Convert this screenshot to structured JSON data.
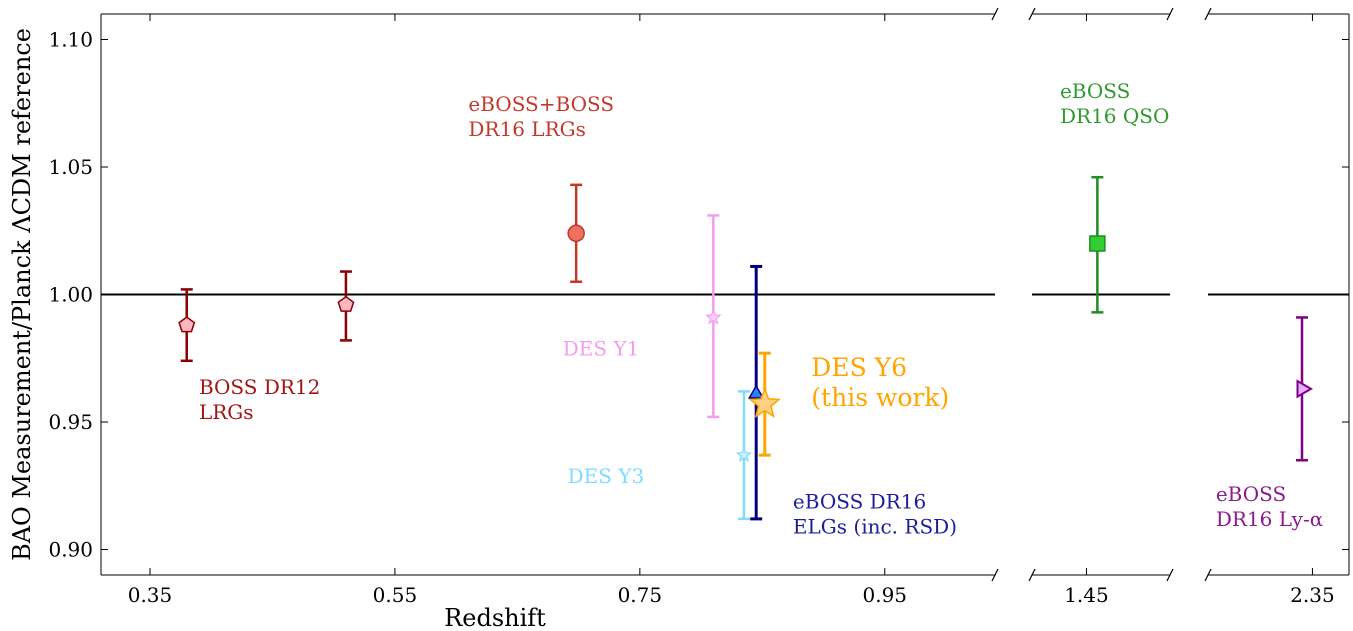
{
  "chart_data": {
    "type": "scatter",
    "xlabel": "Redshift",
    "ylabel": "BAO Measurement/Planck ΛCDM reference",
    "ylim": [
      0.89,
      1.11
    ],
    "yticks": [
      "0.90",
      "0.95",
      "1.00",
      "1.05",
      "1.10"
    ],
    "reference_line": 1.0,
    "panels": [
      {
        "xlim": [
          0.31,
          1.04
        ],
        "xticks": [
          "0.35",
          "0.55",
          "0.75",
          "0.95"
        ]
      },
      {
        "xlim": [
          1.3,
          1.68
        ],
        "xticks": [
          "1.45"
        ]
      },
      {
        "xlim": [
          2.15,
          2.42
        ],
        "xticks": [
          "2.35"
        ]
      }
    ],
    "series": [
      {
        "key": "boss-dr12",
        "color": "#8b0000",
        "fill": "#ffb6c1",
        "marker": "pentagon",
        "points": [
          {
            "x": 0.38,
            "y": 0.988,
            "lo": 0.974,
            "hi": 1.002
          },
          {
            "x": 0.51,
            "y": 0.996,
            "lo": 0.982,
            "hi": 1.009
          }
        ]
      },
      {
        "key": "eboss-lrg",
        "color": "#c0392b",
        "fill": "#f07060",
        "marker": "circle",
        "points": [
          {
            "x": 0.698,
            "y": 1.024,
            "lo": 1.005,
            "hi": 1.043
          }
        ]
      },
      {
        "key": "des-y1",
        "color": "#f39cf0",
        "fill": "#ffd0ff",
        "marker": "star-small",
        "points": [
          {
            "x": 0.81,
            "y": 0.991,
            "lo": 0.952,
            "hi": 1.031
          }
        ]
      },
      {
        "key": "des-y3",
        "color": "#7fdbff",
        "fill": "#c8f0ff",
        "marker": "star-small",
        "points": [
          {
            "x": 0.835,
            "y": 0.937,
            "lo": 0.912,
            "hi": 0.962
          }
        ]
      },
      {
        "key": "eboss-elg",
        "color": "#000080",
        "fill": "#2a7fff",
        "marker": "triangle-up",
        "points": [
          {
            "x": 0.845,
            "y": 0.961,
            "lo": 0.912,
            "hi": 1.011
          }
        ]
      },
      {
        "key": "des-y6",
        "color": "#ffa500",
        "fill": "#ffd080",
        "marker": "star-large",
        "points": [
          {
            "x": 0.852,
            "y": 0.957,
            "lo": 0.937,
            "hi": 0.977
          }
        ]
      },
      {
        "key": "eboss-qso",
        "color": "#228b22",
        "fill": "#32cd32",
        "marker": "square",
        "points": [
          {
            "x": 1.48,
            "y": 1.02,
            "lo": 0.993,
            "hi": 1.046
          }
        ]
      },
      {
        "key": "eboss-lya",
        "color": "#800080",
        "fill": "#e0b0ff",
        "marker": "triangle-right",
        "points": [
          {
            "x": 2.33,
            "y": 0.963,
            "lo": 0.935,
            "hi": 0.991
          }
        ]
      }
    ],
    "annotations": [
      {
        "lines": [
          "BOSS DR12",
          "LRGs"
        ],
        "color": "#a31515",
        "x": 0.39,
        "y": 0.961,
        "size": "normal"
      },
      {
        "lines": [
          "eBOSS+BOSS",
          "DR16 LRGs"
        ],
        "color": "#c0392b",
        "x": 0.61,
        "y": 1.072,
        "size": "normal"
      },
      {
        "lines": [
          "DES Y1"
        ],
        "color": "#f39cf0",
        "x": 0.687,
        "y": 0.976,
        "size": "normal"
      },
      {
        "lines": [
          "DES Y3"
        ],
        "color": "#7fdbff",
        "x": 0.691,
        "y": 0.926,
        "size": "normal"
      },
      {
        "lines": [
          "eBOSS DR16",
          "ELGs (inc. RSD)"
        ],
        "color": "#1c1c9c",
        "x": 0.875,
        "y": 0.916,
        "size": "normal"
      },
      {
        "lines": [
          "DES Y6",
          "(this work)"
        ],
        "color": "#ffa500",
        "x": 0.89,
        "y": 0.968,
        "size": "big"
      },
      {
        "lines": [
          "eBOSS",
          "DR16 QSO"
        ],
        "color": "#2e9b2e",
        "x": 1.377,
        "y": 1.077,
        "size": "normal",
        "panel": 1
      },
      {
        "lines": [
          "eBOSS",
          "DR16 Ly-α"
        ],
        "color": "#8b1a8b",
        "x": 2.165,
        "y": 0.919,
        "size": "normal",
        "panel": 2
      }
    ]
  }
}
